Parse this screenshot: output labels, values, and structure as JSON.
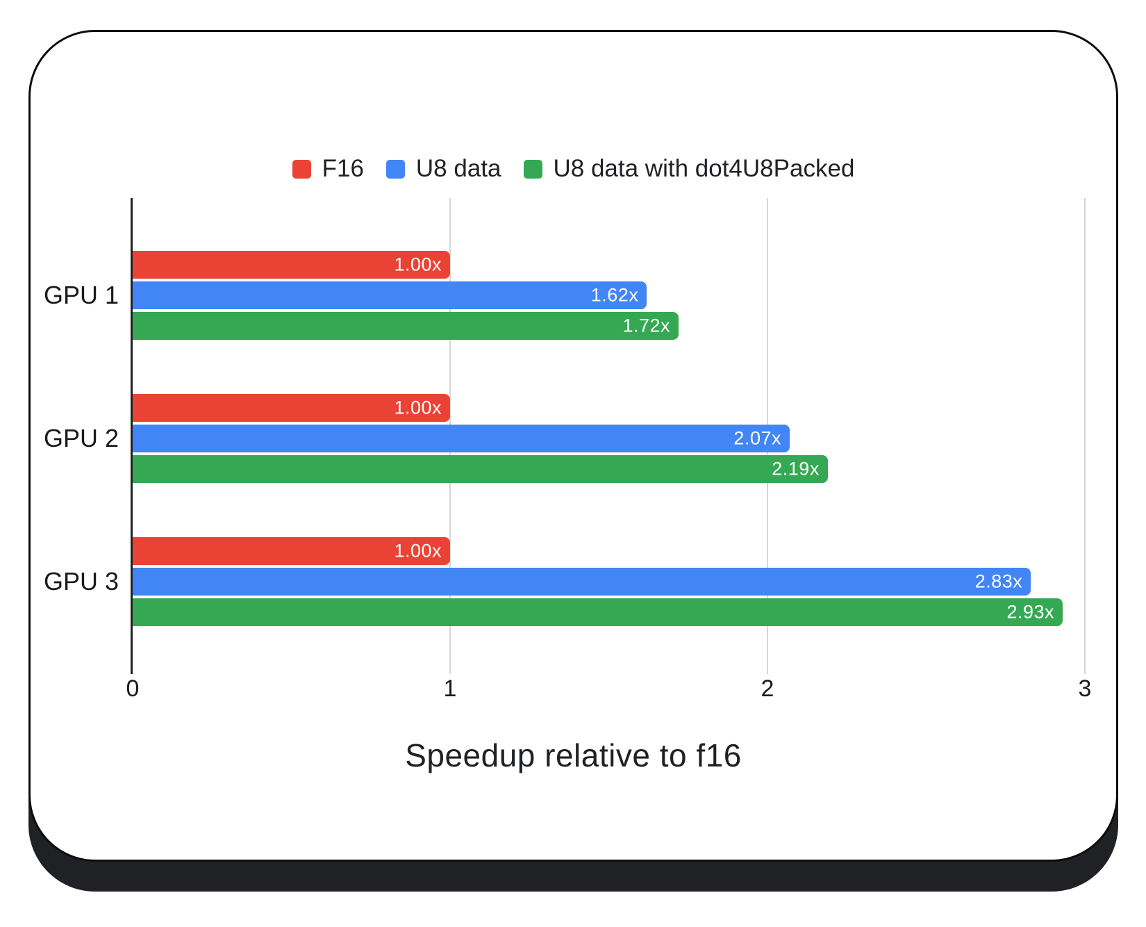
{
  "chart_data": {
    "type": "bar",
    "orientation": "horizontal",
    "title": "",
    "xlabel": "Speedup relative to f16",
    "ylabel": "",
    "xlim": [
      0,
      3
    ],
    "xticks": [
      "0",
      "1",
      "2",
      "3"
    ],
    "grid": true,
    "legend_position": "top",
    "categories": [
      "GPU 1",
      "GPU 2",
      "GPU 3"
    ],
    "series": [
      {
        "name": "F16",
        "color": "#ea4335",
        "values": [
          1.0,
          1.0,
          1.0
        ],
        "labels": [
          "1.00x",
          "1.00x",
          "1.00x"
        ]
      },
      {
        "name": "U8 data",
        "color": "#4285f4",
        "values": [
          1.62,
          2.07,
          2.83
        ],
        "labels": [
          "1.62x",
          "2.07x",
          "2.83x"
        ]
      },
      {
        "name": "U8 data with dot4U8Packed",
        "color": "#34a853",
        "values": [
          1.72,
          2.19,
          2.93
        ],
        "labels": [
          "1.72x",
          "2.19x",
          "2.93x"
        ]
      }
    ],
    "axis_color": "#222222",
    "gridline_color": "#d6d6d6",
    "value_label_color": "#ffffff"
  }
}
